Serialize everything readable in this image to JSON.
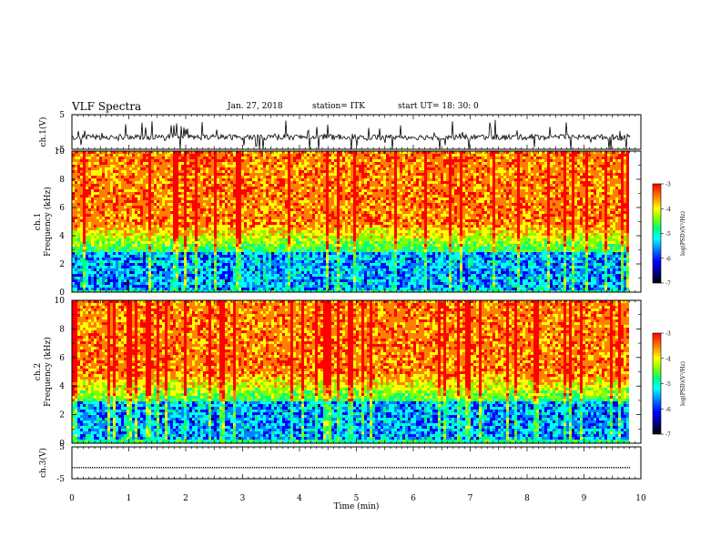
{
  "header": {
    "title": "VLF Spectra",
    "date": "Jan. 27, 2018",
    "station": "station= ITK",
    "start": "start UT= 18: 30: 0"
  },
  "chart_data": [
    {
      "type": "line",
      "panel": "ch1-waveform",
      "ylabel": "ch.1(V)",
      "ylim": [
        -5,
        5
      ],
      "yticks": [
        "5",
        "-5"
      ],
      "series": [
        {
          "baseline": -1.5,
          "noise": "dense spikes"
        }
      ]
    },
    {
      "type": "heatmap",
      "panel": "ch1-spectrogram",
      "ylabel": "ch.1\nFrequency (kHz)",
      "ylim": [
        0,
        10
      ],
      "yticks": [
        "0",
        "2",
        "4",
        "6",
        "8",
        "10"
      ],
      "colorbar": {
        "label": "log(PSD)(V²/Hz)",
        "ticks": [
          "-3",
          "-4",
          "-5",
          "-6",
          "-7"
        ],
        "range": [
          -7,
          -3
        ]
      }
    },
    {
      "type": "heatmap",
      "panel": "ch2-spectrogram",
      "ylabel": "ch.2\nFrequency (kHz)",
      "ylim": [
        0,
        10
      ],
      "yticks": [
        "0",
        "2",
        "4",
        "6",
        "8",
        "10"
      ],
      "colorbar": {
        "label": "log(PSD)(V²/Hz)",
        "ticks": [
          "-3",
          "-4",
          "-5",
          "-6",
          "-7"
        ],
        "range": [
          -7,
          -3
        ]
      }
    },
    {
      "type": "line",
      "panel": "ch3-waveform",
      "ylabel": "ch.3(V)",
      "ylim": [
        -5,
        5
      ],
      "yticks": [
        "5",
        "-5"
      ],
      "series": [
        {
          "constant": -1.5
        }
      ]
    }
  ],
  "xaxis": {
    "label": "Time (min)",
    "xlim": [
      0,
      10
    ],
    "ticks": [
      "0",
      "1",
      "2",
      "3",
      "4",
      "5",
      "6",
      "7",
      "8",
      "9",
      "10"
    ]
  },
  "colormap": [
    "#000000",
    "#00007f",
    "#0000ff",
    "#0080ff",
    "#00ffff",
    "#00ff80",
    "#80ff00",
    "#ffff00",
    "#ff8000",
    "#ff0000"
  ]
}
